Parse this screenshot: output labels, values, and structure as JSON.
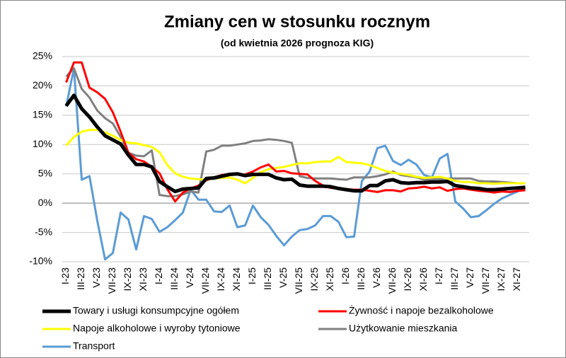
{
  "chart_data": {
    "type": "line",
    "title": "Zmiany cen w stosunku rocznym",
    "subtitle": "(od kwietnia 2026 prognoza KIG)",
    "categories": [
      "I-23",
      null,
      "III-23",
      null,
      "V-23",
      null,
      "VII-23",
      null,
      "IX-23",
      null,
      "XI-23",
      null,
      "I-24",
      null,
      "III-24",
      null,
      "V-24",
      null,
      "VII-24",
      null,
      "IX-24",
      null,
      "XI-24",
      null,
      "I-25",
      null,
      "III-25",
      null,
      "V-25",
      null,
      "VII-25",
      null,
      "IX-25",
      null,
      "XI-25",
      null,
      "I-26",
      null,
      "III-26",
      null,
      "V-26",
      null,
      "VII-26",
      null,
      "IX-26",
      null,
      "XI-26",
      null,
      "I-27",
      null,
      "III-27",
      null,
      "V-27",
      null,
      "VII-27",
      null,
      "IX-27",
      null,
      "XI-27",
      null
    ],
    "ylim": [
      -10,
      25
    ],
    "yticks": [
      {
        "value": -10,
        "label": "-10%"
      },
      {
        "value": -5,
        "label": "-5%"
      },
      {
        "value": 0,
        "label": "0%"
      },
      {
        "value": 5,
        "label": "5%"
      },
      {
        "value": 10,
        "label": "10%"
      },
      {
        "value": 15,
        "label": "15%"
      },
      {
        "value": 20,
        "label": "20%"
      },
      {
        "value": 25,
        "label": "25%"
      }
    ],
    "grid": true,
    "series": [
      {
        "name": "Towary i usługi konsumpcyjne ogółem",
        "color": "#000000",
        "width": 5,
        "values": [
          16.6,
          18.4,
          16.1,
          14.7,
          13.0,
          11.5,
          10.8,
          10.1,
          8.2,
          6.6,
          6.6,
          6.2,
          3.7,
          2.8,
          2.0,
          2.4,
          2.5,
          2.6,
          4.2,
          4.3,
          4.6,
          4.9,
          5.0,
          4.7,
          4.9,
          4.9,
          4.9,
          4.3,
          4.0,
          4.1,
          3.1,
          2.9,
          2.9,
          2.9,
          2.8,
          2.5,
          2.3,
          2.1,
          2.1,
          3.0,
          3.0,
          3.8,
          4.0,
          3.5,
          3.4,
          3.5,
          3.5,
          3.6,
          3.6,
          3.7,
          3.0,
          2.8,
          2.6,
          2.5,
          2.3,
          2.3,
          2.4,
          2.5,
          2.6,
          2.7
        ]
      },
      {
        "name": "Żywność i napoje bezalkoholowe",
        "color": "#ff0000",
        "width": 3,
        "values": [
          20.6,
          24.0,
          24.0,
          19.7,
          18.9,
          17.8,
          15.5,
          12.2,
          8.6,
          7.5,
          7.1,
          6.2,
          5.1,
          2.4,
          0.3,
          1.8,
          2.5,
          3.0,
          3.9,
          4.4,
          4.8,
          5.0,
          4.9,
          4.9,
          5.4,
          6.1,
          6.6,
          5.4,
          5.5,
          5.1,
          5.0,
          4.9,
          3.8,
          3.0,
          2.6,
          2.5,
          2.4,
          2.3,
          2.3,
          2.1,
          1.9,
          2.2,
          2.2,
          2.0,
          2.5,
          2.6,
          2.8,
          2.5,
          2.7,
          2.1,
          2.4,
          2.5,
          2.3,
          2.1,
          2.0,
          1.8,
          2.0,
          1.9,
          2.1,
          2.2
        ]
      },
      {
        "name": "Napoje alkoholowe i wyroby tytoniowe",
        "color": "#ffff00",
        "width": 3,
        "values": [
          9.8,
          11.3,
          12.2,
          12.5,
          12.5,
          12.1,
          11.5,
          10.8,
          10.3,
          10.2,
          9.9,
          9.6,
          8.7,
          6.5,
          5.1,
          4.5,
          4.2,
          4.1,
          4.0,
          4.2,
          4.3,
          4.4,
          4.0,
          3.4,
          4.3,
          5.3,
          5.8,
          6.0,
          6.2,
          6.5,
          6.8,
          6.8,
          7.0,
          7.1,
          7.1,
          7.9,
          7.0,
          6.9,
          6.8,
          6.5,
          6.0,
          5.5,
          5.2,
          5.0,
          4.8,
          4.5,
          4.3,
          4.4,
          4.5,
          4.2,
          3.8,
          3.6,
          3.6,
          3.4,
          3.4,
          3.3,
          3.4,
          3.4,
          3.4,
          3.4
        ]
      },
      {
        "name": "Użytkowanie mieszkania",
        "color": "#808080",
        "width": 3,
        "values": [
          21.6,
          23.0,
          19.5,
          18.0,
          15.8,
          14.5,
          13.6,
          11.3,
          8.6,
          8.1,
          8.0,
          9.0,
          1.4,
          1.2,
          1.2,
          1.5,
          2.0,
          1.8,
          8.8,
          9.1,
          9.8,
          9.8,
          10.0,
          10.2,
          10.6,
          10.7,
          10.9,
          10.8,
          10.6,
          10.3,
          4.6,
          4.3,
          4.2,
          4.2,
          4.2,
          4.1,
          4.0,
          4.4,
          4.4,
          4.4,
          4.6,
          4.9,
          5.4,
          4.8,
          4.6,
          4.4,
          4.0,
          4.1,
          4.1,
          4.2,
          4.2,
          4.2,
          4.2,
          3.8,
          3.7,
          3.7,
          3.6,
          3.5,
          3.4,
          3.4
        ]
      },
      {
        "name": "Transport",
        "color": "#5b9bd5",
        "width": 3,
        "values": [
          16.5,
          23.0,
          4.0,
          4.6,
          -3.0,
          -9.6,
          -8.5,
          -1.6,
          -2.8,
          -7.9,
          -2.2,
          -2.7,
          -4.9,
          -4.1,
          -2.9,
          -1.6,
          2.3,
          0.6,
          0.6,
          -1.4,
          -1.5,
          -0.4,
          -4.1,
          -3.8,
          -0.4,
          -2.4,
          -3.7,
          -5.6,
          -7.2,
          -5.7,
          -4.6,
          -4.4,
          -3.8,
          -2.2,
          -2.2,
          -3.2,
          -5.8,
          -5.7,
          3.8,
          5.4,
          9.4,
          9.8,
          7.2,
          6.5,
          7.4,
          6.6,
          4.8,
          4.4,
          7.6,
          8.4,
          0.3,
          -0.9,
          -2.4,
          -2.2,
          -1.2,
          -0.1,
          0.8,
          1.4,
          2.0,
          2.5
        ]
      }
    ]
  }
}
